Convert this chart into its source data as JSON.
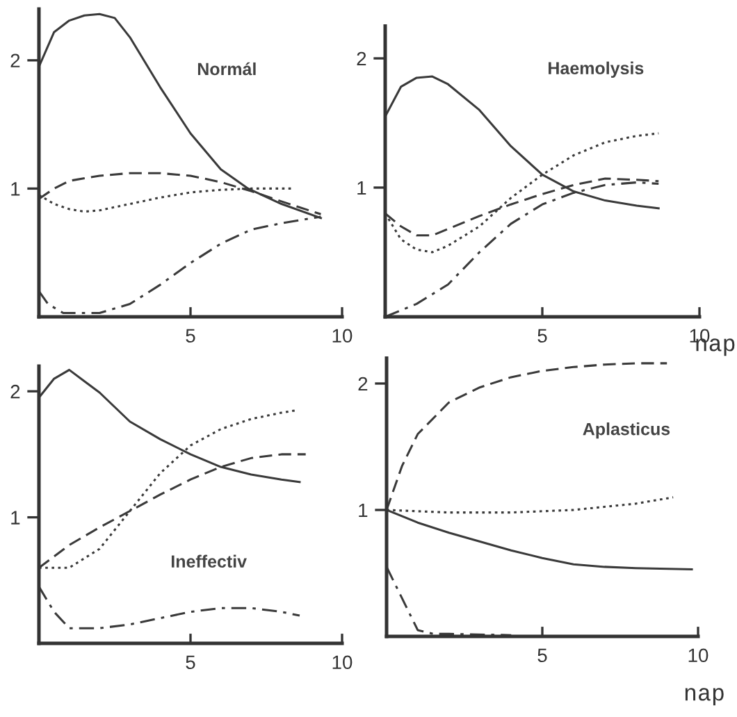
{
  "chart_data": [
    {
      "type": "line",
      "title": "Normál",
      "xlim": [
        0,
        10
      ],
      "ylim": [
        0,
        2.4
      ],
      "xticks": [
        5,
        10
      ],
      "yticks": [
        1,
        2
      ],
      "grid": false,
      "marker": "none",
      "series": [
        {
          "color": "#3a3a3a",
          "line_style": "solid",
          "x": [
            0,
            0.5,
            1,
            1.5,
            2,
            2.5,
            3,
            4,
            5,
            6,
            6.9,
            8,
            9.3
          ],
          "values": [
            1.95,
            2.22,
            2.31,
            2.35,
            2.36,
            2.33,
            2.18,
            1.79,
            1.43,
            1.15,
            1.0,
            0.88,
            0.77
          ]
        },
        {
          "color": "#3a3a3a",
          "line_style": "dashed",
          "x": [
            0,
            0.5,
            1,
            2,
            3,
            4,
            5,
            6,
            7,
            8,
            9.3
          ],
          "values": [
            0.92,
            1.0,
            1.06,
            1.1,
            1.12,
            1.12,
            1.1,
            1.05,
            0.98,
            0.9,
            0.8
          ]
        },
        {
          "color": "#3a3a3a",
          "line_style": "dotted",
          "x": [
            0,
            0.5,
            1,
            1.5,
            2,
            3,
            4,
            5,
            6,
            7,
            8,
            8.4
          ],
          "values": [
            0.95,
            0.88,
            0.84,
            0.82,
            0.83,
            0.88,
            0.93,
            0.97,
            0.99,
            1.0,
            1.0,
            1.0
          ]
        },
        {
          "color": "#3a3a3a",
          "line_style": "dashdot",
          "x": [
            0,
            0.3,
            0.8,
            2,
            3,
            4,
            5,
            6,
            7,
            8,
            9.3
          ],
          "values": [
            0.2,
            0.1,
            0.03,
            0.03,
            0.1,
            0.25,
            0.42,
            0.57,
            0.68,
            0.73,
            0.78
          ]
        }
      ]
    },
    {
      "type": "line",
      "title": "Haemolysis",
      "xlabel": "nap",
      "xlim": [
        0,
        10
      ],
      "ylim": [
        0,
        2.25
      ],
      "xticks": [
        5,
        10
      ],
      "yticks": [
        1,
        2
      ],
      "grid": false,
      "marker": "none",
      "series": [
        {
          "color": "#3a3a3a",
          "line_style": "solid",
          "x": [
            0,
            0.5,
            1,
            1.5,
            2,
            3,
            4,
            5,
            6,
            7,
            8,
            8.7
          ],
          "values": [
            1.55,
            1.78,
            1.85,
            1.86,
            1.8,
            1.6,
            1.32,
            1.1,
            0.97,
            0.9,
            0.86,
            0.84
          ]
        },
        {
          "color": "#3a3a3a",
          "line_style": "dashed",
          "x": [
            0,
            0.5,
            1,
            1.5,
            2,
            3,
            4,
            5,
            6,
            7,
            8,
            8.7
          ],
          "values": [
            0.8,
            0.7,
            0.63,
            0.63,
            0.68,
            0.78,
            0.87,
            0.95,
            1.02,
            1.07,
            1.06,
            1.05
          ]
        },
        {
          "color": "#3a3a3a",
          "line_style": "dotted",
          "x": [
            0,
            0.5,
            1,
            1.5,
            2,
            3,
            4,
            5,
            6,
            7,
            8,
            8.7
          ],
          "values": [
            0.8,
            0.6,
            0.52,
            0.5,
            0.55,
            0.7,
            0.92,
            1.1,
            1.25,
            1.35,
            1.4,
            1.42
          ]
        },
        {
          "color": "#3a3a3a",
          "line_style": "dashdot",
          "x": [
            0,
            1,
            2,
            3,
            4,
            5,
            6,
            7,
            8,
            8.7
          ],
          "values": [
            0,
            0.1,
            0.25,
            0.5,
            0.72,
            0.87,
            0.96,
            1.02,
            1.04,
            1.03
          ]
        }
      ]
    },
    {
      "type": "line",
      "title": "Ineffectiv",
      "xlim": [
        0,
        10
      ],
      "ylim": [
        0,
        2.2
      ],
      "xticks": [
        5,
        10
      ],
      "yticks": [
        1,
        2
      ],
      "grid": false,
      "marker": "none",
      "series": [
        {
          "color": "#3a3a3a",
          "line_style": "solid",
          "x": [
            0,
            0.5,
            1,
            1.5,
            2,
            3,
            4,
            5,
            6,
            7,
            8,
            8.6
          ],
          "values": [
            1.95,
            2.1,
            2.17,
            2.08,
            1.99,
            1.76,
            1.62,
            1.5,
            1.4,
            1.34,
            1.3,
            1.28
          ]
        },
        {
          "color": "#3a3a3a",
          "line_style": "dashed",
          "x": [
            0,
            1,
            2,
            3,
            4,
            5,
            6,
            7,
            8,
            8.8
          ],
          "values": [
            0.6,
            0.78,
            0.92,
            1.05,
            1.18,
            1.3,
            1.4,
            1.47,
            1.5,
            1.5
          ]
        },
        {
          "color": "#3a3a3a",
          "line_style": "dotted",
          "x": [
            0,
            1,
            2,
            3,
            4,
            5,
            6,
            7,
            8,
            8.5
          ],
          "values": [
            0.6,
            0.6,
            0.75,
            1.05,
            1.35,
            1.57,
            1.7,
            1.78,
            1.83,
            1.85
          ]
        },
        {
          "color": "#3a3a3a",
          "line_style": "dashdot",
          "x": [
            0,
            0.5,
            1,
            2,
            3,
            4,
            5,
            6,
            7,
            8,
            8.6
          ],
          "values": [
            0.45,
            0.25,
            0.12,
            0.12,
            0.15,
            0.2,
            0.25,
            0.28,
            0.28,
            0.25,
            0.22
          ]
        }
      ]
    },
    {
      "type": "line",
      "title": "Aplasticus",
      "xlabel": "nap",
      "xlim": [
        0,
        10
      ],
      "ylim": [
        0,
        2.2
      ],
      "xticks": [
        5,
        10
      ],
      "yticks": [
        1,
        2
      ],
      "grid": false,
      "marker": "none",
      "series": [
        {
          "color": "#3a3a3a",
          "line_style": "solid",
          "x": [
            0,
            1,
            2,
            3,
            4,
            5,
            6,
            7,
            8,
            9.8
          ],
          "values": [
            1.0,
            0.9,
            0.82,
            0.75,
            0.68,
            0.62,
            0.57,
            0.55,
            0.54,
            0.53
          ]
        },
        {
          "color": "#3a3a3a",
          "line_style": "dashed",
          "x": [
            0,
            0.5,
            1,
            2,
            3,
            4,
            5,
            6,
            7,
            8,
            9
          ],
          "values": [
            1.0,
            1.35,
            1.6,
            1.85,
            1.97,
            2.05,
            2.1,
            2.13,
            2.15,
            2.16,
            2.16
          ]
        },
        {
          "color": "#3a3a3a",
          "line_style": "dotted",
          "x": [
            0,
            2,
            4,
            6,
            8,
            9.2
          ],
          "values": [
            1.0,
            0.98,
            0.98,
            1.0,
            1.05,
            1.1
          ]
        },
        {
          "color": "#3a3a3a",
          "line_style": "dashdot",
          "x": [
            0,
            0.5,
            1,
            1.5,
            2,
            4
          ],
          "values": [
            0.55,
            0.3,
            0.05,
            0.02,
            0.02,
            0.01
          ]
        }
      ]
    }
  ]
}
